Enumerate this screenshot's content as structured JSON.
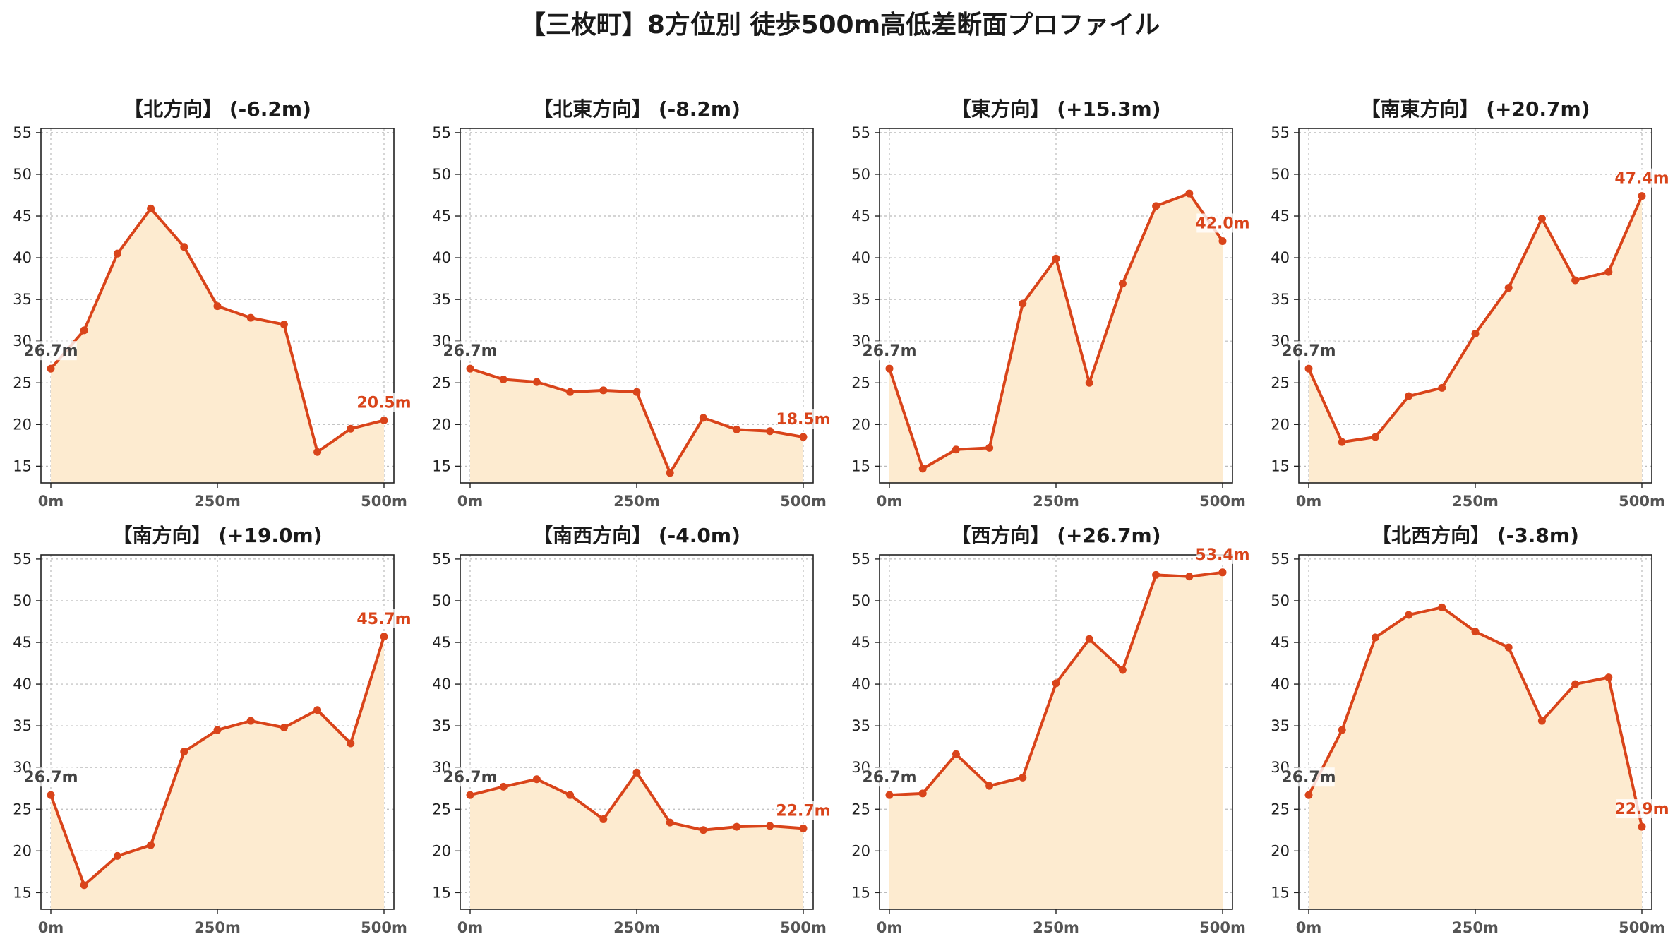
{
  "title": "【三枚町】8方位別 徒歩500m高低差断面プロファイル",
  "colors": {
    "line": "#d9441a",
    "fill": "#fdebd0",
    "grid": "#bbbbbb",
    "start_label": "#444444",
    "end_label": "#d9441a"
  },
  "chart_data": [
    {
      "type": "area",
      "title": "【北方向】 (-6.2m)",
      "x": [
        0,
        50,
        100,
        150,
        200,
        250,
        300,
        350,
        400,
        450,
        500
      ],
      "values": [
        26.7,
        31.3,
        40.5,
        45.9,
        41.3,
        34.2,
        32.8,
        32.0,
        16.7,
        19.5,
        20.5
      ],
      "xticks": [
        "0m",
        "250m",
        "500m"
      ],
      "yticks": [
        15,
        20,
        25,
        30,
        35,
        40,
        45,
        50,
        55
      ],
      "ylim": [
        13,
        55.5
      ],
      "start_label": "26.7m",
      "end_label": "20.5m",
      "grid": true
    },
    {
      "type": "area",
      "title": "【北東方向】 (-8.2m)",
      "x": [
        0,
        50,
        100,
        150,
        200,
        250,
        300,
        350,
        400,
        450,
        500
      ],
      "values": [
        26.7,
        25.4,
        25.1,
        23.9,
        24.1,
        23.9,
        14.2,
        20.8,
        19.4,
        19.2,
        18.5
      ],
      "xticks": [
        "0m",
        "250m",
        "500m"
      ],
      "yticks": [
        15,
        20,
        25,
        30,
        35,
        40,
        45,
        50,
        55
      ],
      "ylim": [
        13,
        55.5
      ],
      "start_label": "26.7m",
      "end_label": "18.5m",
      "grid": true
    },
    {
      "type": "area",
      "title": "【東方向】 (+15.3m)",
      "x": [
        0,
        50,
        100,
        150,
        200,
        250,
        300,
        350,
        400,
        450,
        500
      ],
      "values": [
        26.7,
        14.7,
        17.0,
        17.2,
        34.5,
        39.9,
        25.0,
        36.9,
        46.2,
        47.7,
        42.0
      ],
      "xticks": [
        "0m",
        "250m",
        "500m"
      ],
      "yticks": [
        15,
        20,
        25,
        30,
        35,
        40,
        45,
        50,
        55
      ],
      "ylim": [
        13,
        55.5
      ],
      "start_label": "26.7m",
      "end_label": "42.0m",
      "grid": true
    },
    {
      "type": "area",
      "title": "【南東方向】 (+20.7m)",
      "x": [
        0,
        50,
        100,
        150,
        200,
        250,
        300,
        350,
        400,
        450,
        500
      ],
      "values": [
        26.7,
        17.9,
        18.5,
        23.4,
        24.4,
        30.9,
        36.4,
        44.7,
        37.3,
        38.3,
        47.4
      ],
      "xticks": [
        "0m",
        "250m",
        "500m"
      ],
      "yticks": [
        15,
        20,
        25,
        30,
        35,
        40,
        45,
        50,
        55
      ],
      "ylim": [
        13,
        55.5
      ],
      "start_label": "26.7m",
      "end_label": "47.4m",
      "grid": true
    },
    {
      "type": "area",
      "title": "【南方向】 (+19.0m)",
      "x": [
        0,
        50,
        100,
        150,
        200,
        250,
        300,
        350,
        400,
        450,
        500
      ],
      "values": [
        26.7,
        15.9,
        19.4,
        20.7,
        31.9,
        34.5,
        35.6,
        34.8,
        36.9,
        32.9,
        45.7
      ],
      "xticks": [
        "0m",
        "250m",
        "500m"
      ],
      "yticks": [
        15,
        20,
        25,
        30,
        35,
        40,
        45,
        50,
        55
      ],
      "ylim": [
        13,
        55.5
      ],
      "start_label": "26.7m",
      "end_label": "45.7m",
      "grid": true
    },
    {
      "type": "area",
      "title": "【南西方向】 (-4.0m)",
      "x": [
        0,
        50,
        100,
        150,
        200,
        250,
        300,
        350,
        400,
        450,
        500
      ],
      "values": [
        26.7,
        27.7,
        28.6,
        26.7,
        23.8,
        29.4,
        23.4,
        22.5,
        22.9,
        23.0,
        22.7
      ],
      "xticks": [
        "0m",
        "250m",
        "500m"
      ],
      "yticks": [
        15,
        20,
        25,
        30,
        35,
        40,
        45,
        50,
        55
      ],
      "ylim": [
        13,
        55.5
      ],
      "start_label": "26.7m",
      "end_label": "22.7m",
      "grid": true
    },
    {
      "type": "area",
      "title": "【西方向】 (+26.7m)",
      "x": [
        0,
        50,
        100,
        150,
        200,
        250,
        300,
        350,
        400,
        450,
        500
      ],
      "values": [
        26.7,
        26.9,
        31.6,
        27.8,
        28.8,
        40.1,
        45.4,
        41.7,
        53.1,
        52.9,
        53.4
      ],
      "xticks": [
        "0m",
        "250m",
        "500m"
      ],
      "yticks": [
        15,
        20,
        25,
        30,
        35,
        40,
        45,
        50,
        55
      ],
      "ylim": [
        13,
        55.5
      ],
      "start_label": "26.7m",
      "end_label": "53.4m",
      "grid": true
    },
    {
      "type": "area",
      "title": "【北西方向】 (-3.8m)",
      "x": [
        0,
        50,
        100,
        150,
        200,
        250,
        300,
        350,
        400,
        450,
        500
      ],
      "values": [
        26.7,
        34.5,
        45.6,
        48.3,
        49.2,
        46.3,
        44.4,
        35.6,
        40.0,
        40.8,
        22.9
      ],
      "xticks": [
        "0m",
        "250m",
        "500m"
      ],
      "yticks": [
        15,
        20,
        25,
        30,
        35,
        40,
        45,
        50,
        55
      ],
      "ylim": [
        13,
        55.5
      ],
      "start_label": "26.7m",
      "end_label": "22.9m",
      "grid": true
    }
  ]
}
